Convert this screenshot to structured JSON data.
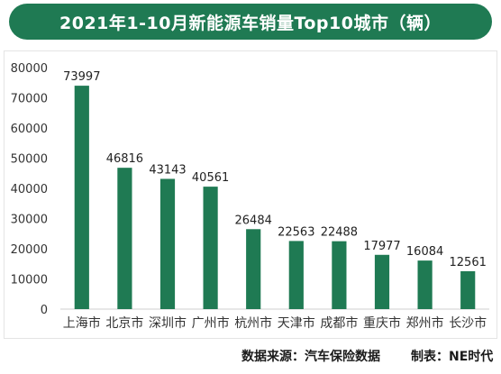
{
  "header": {
    "title": "2021年1-10月新能源车销量Top10城市（辆）"
  },
  "footer": {
    "source": "数据来源：汽车保险数据",
    "credit": "制表：NE时代"
  },
  "chart_data": {
    "type": "bar",
    "categories": [
      "上海市",
      "北京市",
      "深圳市",
      "广州市",
      "杭州市",
      "天津市",
      "成都市",
      "重庆市",
      "郑州市",
      "长沙市"
    ],
    "values": [
      73997,
      46816,
      43143,
      40561,
      26484,
      22563,
      22488,
      17977,
      16084,
      12561
    ],
    "yticks": [
      0,
      10000,
      20000,
      30000,
      40000,
      50000,
      60000,
      70000,
      80000
    ],
    "ylim": [
      0,
      80000
    ],
    "grid": false,
    "legend": "none",
    "colors": {
      "bar": "#1f7a53",
      "axis": "#cfcfcf",
      "text": "#333333",
      "label": "#222222"
    }
  }
}
